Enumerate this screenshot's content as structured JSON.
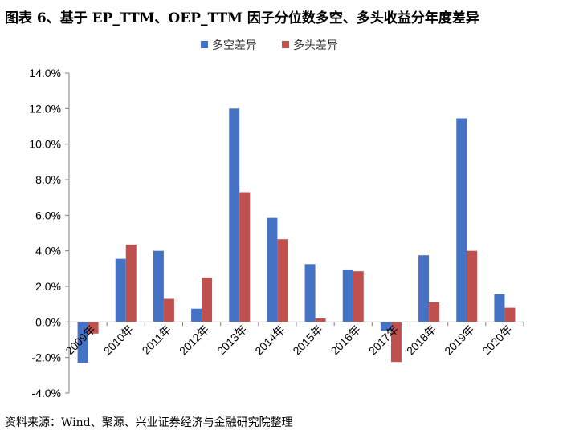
{
  "title": "图表 6、基于 EP_TTM、OEP_TTM 因子分位数多空、多头收益分年度差异",
  "source": "资料来源：Wind、聚源、兴业证券经济与金融研究院整理",
  "colors": {
    "series0": "#4472C4",
    "series1": "#C0504D",
    "axis": "#808080"
  },
  "chart_data": {
    "type": "bar",
    "categories": [
      "2009年",
      "2010年",
      "2011年",
      "2012年",
      "2013年",
      "2014年",
      "2015年",
      "2016年",
      "2017年",
      "2018年",
      "2019年",
      "2020年"
    ],
    "series": [
      {
        "name": "多空差异",
        "values": [
          -2.3,
          3.55,
          4.0,
          0.75,
          12.0,
          5.85,
          3.25,
          2.95,
          -0.5,
          3.75,
          11.45,
          1.55
        ]
      },
      {
        "name": "多头差异",
        "values": [
          -0.65,
          4.35,
          1.3,
          2.5,
          7.3,
          4.65,
          0.2,
          2.85,
          -2.25,
          1.1,
          4.0,
          0.8
        ]
      }
    ],
    "ylim": [
      -4,
      14
    ],
    "yticks": [
      "-4.0%",
      "-2.0%",
      "0.0%",
      "2.0%",
      "4.0%",
      "6.0%",
      "8.0%",
      "10.0%",
      "12.0%",
      "14.0%"
    ],
    "xlabel": "",
    "ylabel": "",
    "legend_position": "top-center",
    "grid": false
  }
}
